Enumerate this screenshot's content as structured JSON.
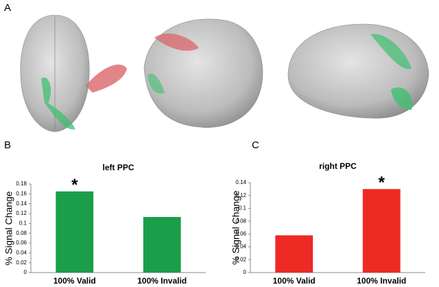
{
  "panels": [
    "A",
    "B",
    "C"
  ],
  "chart_data": [
    {
      "type": "bar",
      "title": "left PPC",
      "y_label": "% Signal Change",
      "categories": [
        "100% Valid",
        "100% Invalid"
      ],
      "values": [
        0.165,
        0.113
      ],
      "color": "#1a9e4a",
      "ylim": [
        0,
        0.18
      ],
      "yticks": [
        0,
        0.02,
        0.04,
        0.06,
        0.08,
        0.1,
        0.12,
        0.14,
        0.16,
        0.18
      ],
      "annotations": [
        {
          "text": "*",
          "at": 0
        }
      ]
    },
    {
      "type": "bar",
      "title": "right PPC",
      "y_label": "% Signal Change",
      "categories": [
        "100% Valid",
        "100% Invalid"
      ],
      "values": [
        0.058,
        0.13
      ],
      "color": "#ee2a24",
      "ylim": [
        0,
        0.14
      ],
      "yticks": [
        0,
        0.02,
        0.04,
        0.06,
        0.08,
        0.1,
        0.12,
        0.14
      ],
      "annotations": [
        {
          "text": "*",
          "at": 1
        }
      ]
    }
  ]
}
